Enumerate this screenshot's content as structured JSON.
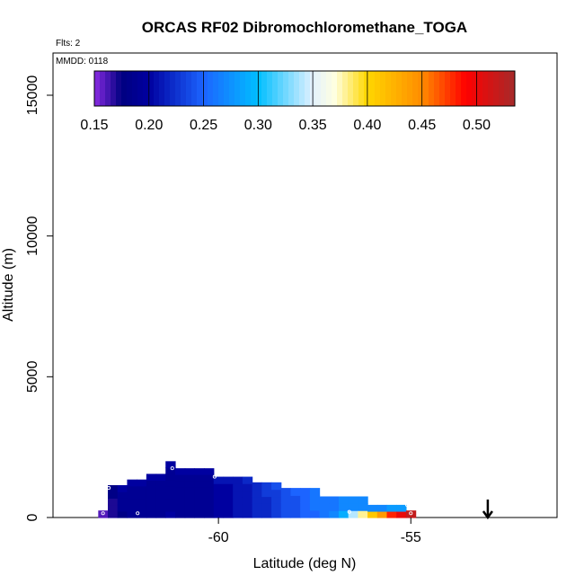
{
  "chart_data": {
    "type": "heatmap",
    "title": "ORCAS RF02 Dibromochloromethane_TOGA",
    "flights_label": "Flts: 2",
    "date_label": "MMDD: 0118",
    "xlabel": "Latitude (deg N)",
    "ylabel": "Altitude (m)",
    "xlim": [
      -64.3,
      -51.2
    ],
    "ylim": [
      0,
      16500
    ],
    "x_ticks": [
      -60,
      -55
    ],
    "x_tick_labels": [
      "-60",
      "-55"
    ],
    "y_ticks": [
      0,
      5000,
      10000,
      15000
    ],
    "y_tick_labels": [
      "0",
      "5000",
      "10000",
      "15000"
    ],
    "colorbar": {
      "min": 0.15,
      "max": 0.535,
      "ticks": [
        0.15,
        0.2,
        0.25,
        0.3,
        0.35,
        0.4,
        0.45,
        0.5
      ],
      "tick_labels": [
        "0.15",
        "0.20",
        "0.25",
        "0.30",
        "0.35",
        "0.40",
        "0.45",
        "0.50"
      ],
      "stops": [
        {
          "v": 0.15,
          "c": "#8a2be2"
        },
        {
          "v": 0.175,
          "c": "#000080"
        },
        {
          "v": 0.2,
          "c": "#0000a0"
        },
        {
          "v": 0.25,
          "c": "#1c64ff"
        },
        {
          "v": 0.3,
          "c": "#00bfff"
        },
        {
          "v": 0.35,
          "c": "#e2f1ff"
        },
        {
          "v": 0.37,
          "c": "#ffffe0"
        },
        {
          "v": 0.4,
          "c": "#ffd700"
        },
        {
          "v": 0.45,
          "c": "#ff8c00"
        },
        {
          "v": 0.49,
          "c": "#ff0000"
        },
        {
          "v": 0.535,
          "c": "#a52a2a"
        }
      ]
    },
    "cell_width_deg": 0.25,
    "columns": [
      {
        "lat": -63.0,
        "top": 250,
        "values": [
          0.16
        ]
      },
      {
        "lat": -62.75,
        "top": 1150,
        "values": [
          0.17,
          0.17,
          0.17,
          0.18,
          0.18
        ]
      },
      {
        "lat": -62.5,
        "top": 1150,
        "values": [
          0.18,
          0.19,
          0.19,
          0.19,
          0.2
        ]
      },
      {
        "lat": -62.25,
        "top": 1350,
        "values": [
          0.19,
          0.19,
          0.19,
          0.19,
          0.19,
          0.2
        ]
      },
      {
        "lat": -62.0,
        "top": 1350,
        "values": [
          0.19,
          0.19,
          0.19,
          0.19,
          0.19,
          0.2
        ]
      },
      {
        "lat": -61.75,
        "top": 1550,
        "values": [
          0.19,
          0.19,
          0.19,
          0.19,
          0.19,
          0.19,
          0.2
        ]
      },
      {
        "lat": -61.5,
        "top": 1550,
        "values": [
          0.19,
          0.19,
          0.19,
          0.19,
          0.19,
          0.19,
          0.2
        ]
      },
      {
        "lat": -61.25,
        "top": 2000,
        "values": [
          0.2,
          0.19,
          0.19,
          0.19,
          0.19,
          0.19,
          0.19,
          0.19,
          0.2
        ]
      },
      {
        "lat": -61.0,
        "top": 1750,
        "values": [
          0.19,
          0.19,
          0.19,
          0.19,
          0.19,
          0.19,
          0.19,
          0.2
        ]
      },
      {
        "lat": -60.75,
        "top": 1750,
        "values": [
          0.19,
          0.19,
          0.19,
          0.19,
          0.19,
          0.19,
          0.19,
          0.2
        ]
      },
      {
        "lat": -60.5,
        "top": 1750,
        "values": [
          0.19,
          0.19,
          0.19,
          0.19,
          0.19,
          0.19,
          0.19,
          0.2
        ]
      },
      {
        "lat": -60.25,
        "top": 1750,
        "values": [
          0.19,
          0.19,
          0.19,
          0.19,
          0.19,
          0.19,
          0.19,
          0.2
        ]
      },
      {
        "lat": -60.0,
        "top": 1450,
        "values": [
          0.2,
          0.2,
          0.2,
          0.2,
          0.2,
          0.21
        ]
      },
      {
        "lat": -59.75,
        "top": 1450,
        "values": [
          0.2,
          0.2,
          0.2,
          0.2,
          0.2,
          0.21
        ]
      },
      {
        "lat": -59.5,
        "top": 1450,
        "values": [
          0.21,
          0.21,
          0.21,
          0.21,
          0.21,
          0.21
        ]
      },
      {
        "lat": -59.25,
        "top": 1450,
        "values": [
          0.21,
          0.21,
          0.21,
          0.21,
          0.21,
          0.22
        ]
      },
      {
        "lat": -59.0,
        "top": 1250,
        "values": [
          0.22,
          0.22,
          0.22,
          0.22,
          0.22
        ]
      },
      {
        "lat": -58.75,
        "top": 1250,
        "values": [
          0.22,
          0.22,
          0.22,
          0.23,
          0.23
        ]
      },
      {
        "lat": -58.5,
        "top": 1250,
        "values": [
          0.23,
          0.23,
          0.23,
          0.23,
          0.24
        ]
      },
      {
        "lat": -58.25,
        "top": 1050,
        "values": [
          0.24,
          0.24,
          0.24,
          0.24
        ]
      },
      {
        "lat": -58.0,
        "top": 1050,
        "values": [
          0.24,
          0.24,
          0.24,
          0.25
        ]
      },
      {
        "lat": -57.75,
        "top": 1050,
        "values": [
          0.25,
          0.25,
          0.25,
          0.25
        ]
      },
      {
        "lat": -57.5,
        "top": 1050,
        "values": [
          0.25,
          0.26,
          0.26,
          0.26
        ]
      },
      {
        "lat": -57.25,
        "top": 750,
        "values": [
          0.26,
          0.26,
          0.26
        ]
      },
      {
        "lat": -57.0,
        "top": 750,
        "values": [
          0.27,
          0.26,
          0.26
        ]
      },
      {
        "lat": -56.75,
        "top": 750,
        "values": [
          0.29,
          0.27,
          0.27
        ]
      },
      {
        "lat": -56.5,
        "top": 750,
        "values": [
          0.34,
          0.27,
          0.27
        ]
      },
      {
        "lat": -56.25,
        "top": 750,
        "values": [
          0.38,
          0.27,
          0.27
        ]
      },
      {
        "lat": -56.0,
        "top": 450,
        "values": [
          0.41,
          0.27
        ]
      },
      {
        "lat": -55.75,
        "top": 450,
        "values": [
          0.44,
          0.27
        ]
      },
      {
        "lat": -55.5,
        "top": 450,
        "values": [
          0.48,
          0.28
        ]
      },
      {
        "lat": -55.25,
        "top": 450,
        "values": [
          0.5,
          0.28
        ]
      },
      {
        "lat": -55.0,
        "top": 250,
        "values": [
          0.52
        ]
      }
    ],
    "sample_points": [
      {
        "lat": -63.0,
        "alt": 150
      },
      {
        "lat": -62.85,
        "alt": 1050
      },
      {
        "lat": -62.1,
        "alt": 150
      },
      {
        "lat": -61.2,
        "alt": 1750
      },
      {
        "lat": -60.1,
        "alt": 1450
      },
      {
        "lat": -56.6,
        "alt": 200
      },
      {
        "lat": -55.1,
        "alt": 450
      },
      {
        "lat": -55.0,
        "alt": 150
      }
    ],
    "arrow_lat": -53.0,
    "arrow_direction": "down"
  }
}
